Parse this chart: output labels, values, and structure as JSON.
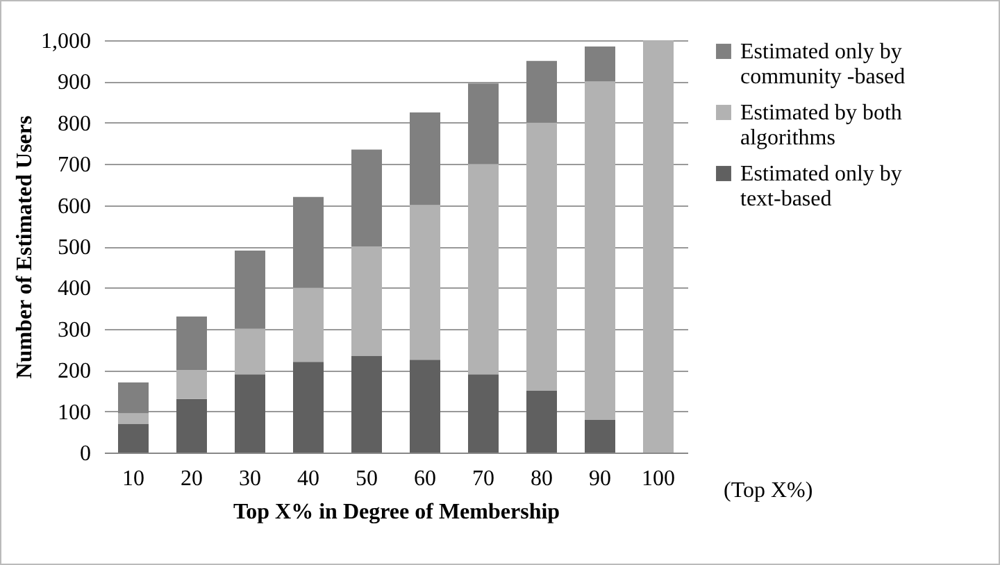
{
  "chart_data": {
    "type": "bar",
    "stacked": true,
    "xlabel": "Top X% in Degree of Membership",
    "ylabel": "Number of Estimated Users",
    "categories": [
      "10",
      "20",
      "30",
      "40",
      "50",
      "60",
      "70",
      "80",
      "90",
      "100"
    ],
    "series": [
      {
        "name": "Estimated only by text-based",
        "color": "#606060",
        "values": [
          70,
          130,
          190,
          220,
          235,
          225,
          190,
          150,
          80,
          0
        ]
      },
      {
        "name": "Estimated by both algorithms",
        "color": "#b2b2b2",
        "values": [
          25,
          70,
          110,
          180,
          265,
          375,
          510,
          650,
          820,
          1000
        ]
      },
      {
        "name": "Estimated only by community -based",
        "color": "#808080",
        "values": [
          75,
          130,
          190,
          220,
          235,
          225,
          195,
          150,
          85,
          0
        ]
      }
    ],
    "ylim": [
      0,
      1000
    ],
    "yticks": [
      0,
      {
        "value": 100,
        "label": "100"
      },
      200,
      300,
      400,
      500,
      600,
      700,
      800,
      900,
      {
        "value": 1000,
        "label": "1,000"
      }
    ],
    "grid": "y",
    "legend": "right",
    "annotations": [
      "(Top X%)"
    ]
  }
}
